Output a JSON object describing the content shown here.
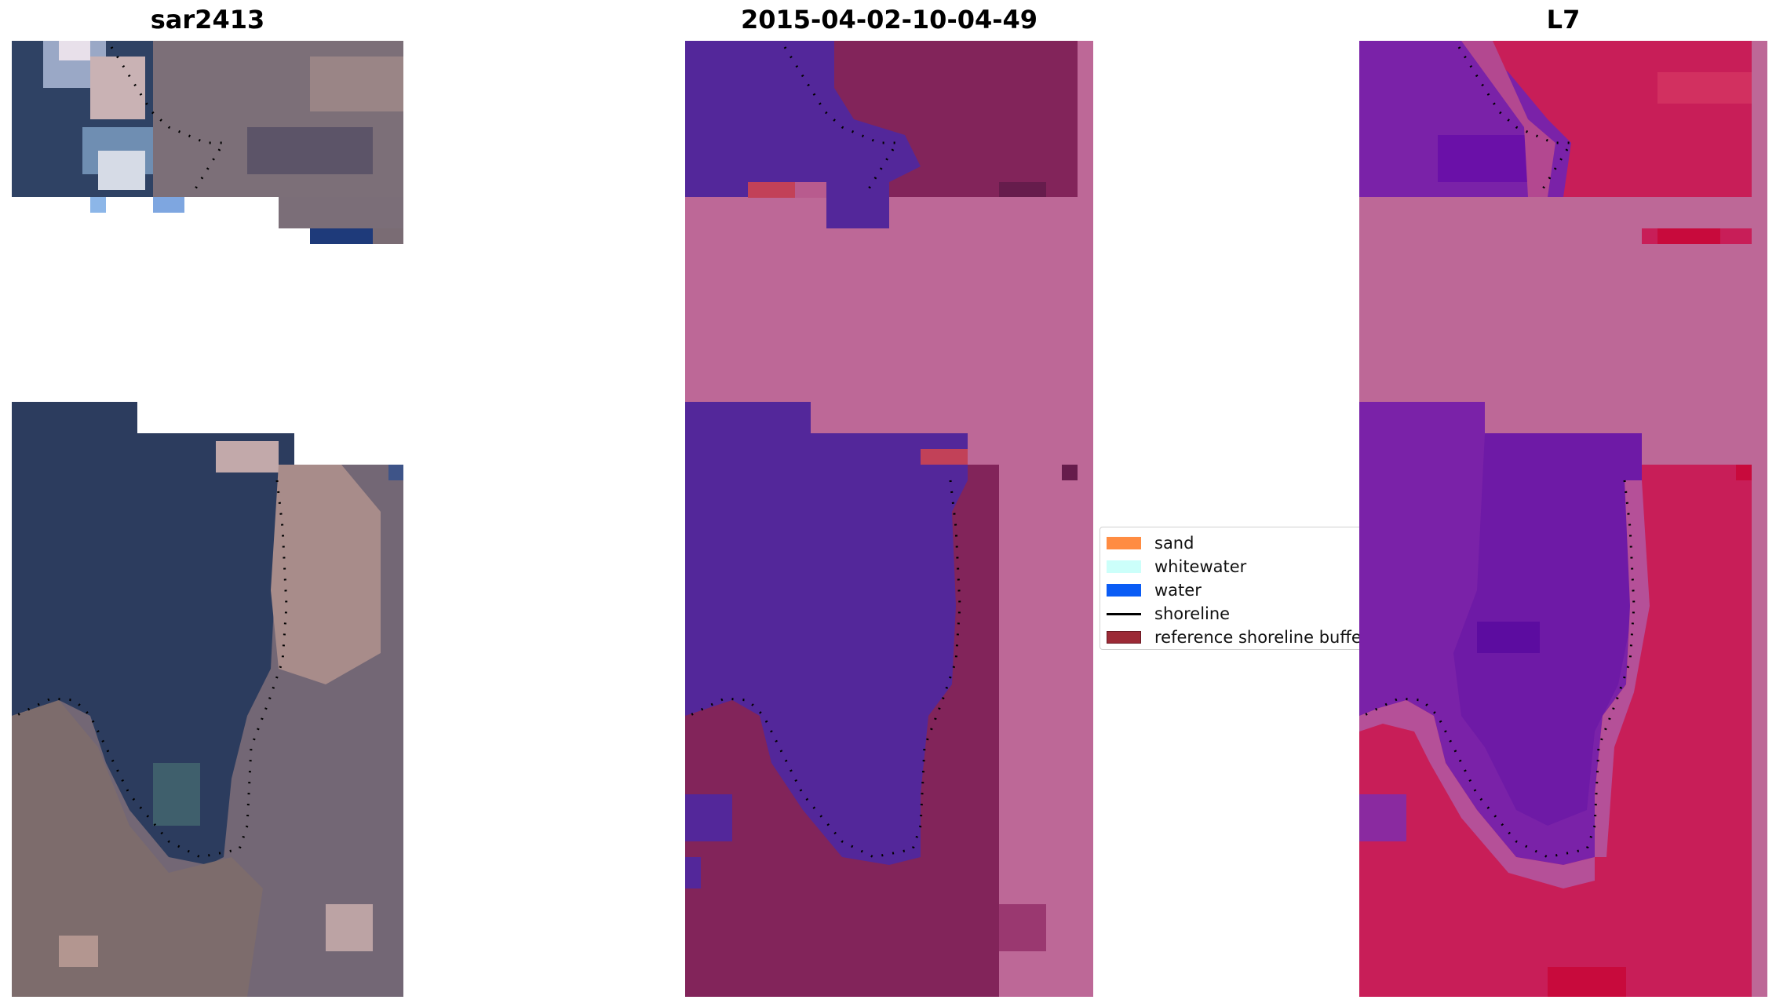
{
  "panels": [
    {
      "title": "sar2413"
    },
    {
      "title": "2015-04-02-10-04-49"
    },
    {
      "title": "L7"
    }
  ],
  "legend": {
    "items": [
      {
        "label": "sand",
        "color": "#ff8c42",
        "type": "patch"
      },
      {
        "label": "whitewater",
        "color": "#ccfffa",
        "type": "patch"
      },
      {
        "label": "water",
        "color": "#0a5cf5",
        "type": "patch"
      },
      {
        "label": "shoreline",
        "color": "#000000",
        "type": "line"
      },
      {
        "label": "reference shoreline buffer",
        "color": "#9c2a36",
        "type": "patch"
      }
    ]
  },
  "colors": {
    "rgb_water": "#2a3a5e",
    "rgb_land": "#8a7a7c",
    "class_water": "#53279a",
    "class_land": "#82245a",
    "class_nodata": "#bd6897",
    "ndwi_water": "#7a22a8",
    "ndwi_land": "#c81e58",
    "ndwi_nodata": "#bd6897"
  }
}
